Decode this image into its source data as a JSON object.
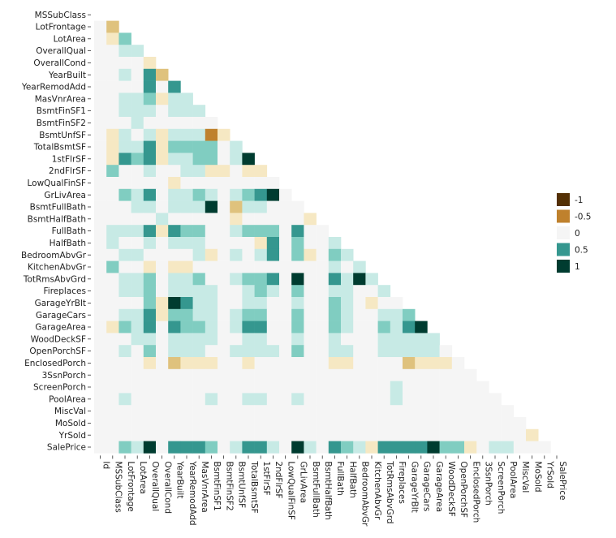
{
  "chart_data": {
    "type": "heatmap",
    "subtype": "lower-triangle correlation matrix",
    "variables": [
      "Id",
      "MSSubClass",
      "LotFrontage",
      "LotArea",
      "OverallQual",
      "OverallCond",
      "YearBuilt",
      "YearRemodAdd",
      "MasVnrArea",
      "BsmtFinSF1",
      "BsmtFinSF2",
      "BsmtUnfSF",
      "TotalBsmtSF",
      "1stFlrSF",
      "2ndFlrSF",
      "LowQualFinSF",
      "GrLivArea",
      "BsmtFullBath",
      "BsmtHalfBath",
      "FullBath",
      "HalfBath",
      "BedroomAbvGr",
      "KitchenAbvGr",
      "TotRmsAbvGrd",
      "Fireplaces",
      "GarageYrBlt",
      "GarageCars",
      "GarageArea",
      "WoodDeckSF",
      "OpenPorchSF",
      "EnclosedPorch",
      "3SsnPorch",
      "ScreenPorch",
      "PoolArea",
      "MiscVal",
      "MoSold",
      "YrSold",
      "SalePrice"
    ],
    "value_range": [
      -1,
      1
    ],
    "legend": {
      "placement": "right",
      "entries": [
        {
          "label": "-1",
          "value": -1,
          "color": "#543005"
        },
        {
          "label": "-0.5",
          "value": -0.5,
          "color": "#bf812d"
        },
        {
          "label": "0",
          "value": 0,
          "color": "#f5f5f5"
        },
        {
          "label": "0.5",
          "value": 0.5,
          "color": "#35978f"
        },
        {
          "label": "1",
          "value": 1,
          "color": "#003c30"
        }
      ]
    },
    "colors": {
      "-0.9": "#543005",
      "-0.7": "#bf812d",
      "-0.5": "#dfc27d",
      "-0.3": "#f6e8c3",
      "0": "#f5f5f5",
      "0.3": "#c7eae5",
      "0.5": "#80cdc1",
      "0.7": "#35978f",
      "0.9": "#003c30"
    },
    "rows": [
      {
        "name": "MSSubClass",
        "values": []
      },
      {
        "name": "LotFrontage",
        "values": [
          0,
          -0.5
        ]
      },
      {
        "name": "LotArea",
        "values": [
          0,
          -0.3,
          0.5
        ]
      },
      {
        "name": "OverallQual",
        "values": [
          0,
          0,
          0.3,
          0.3
        ]
      },
      {
        "name": "OverallCond",
        "values": [
          0,
          0,
          0,
          0,
          -0.3
        ]
      },
      {
        "name": "YearBuilt",
        "values": [
          0,
          0,
          0.3,
          0,
          0.7,
          -0.5
        ]
      },
      {
        "name": "YearRemodAdd",
        "values": [
          0,
          0,
          0,
          0,
          0.7,
          0,
          0.7
        ]
      },
      {
        "name": "MasVnrArea",
        "values": [
          0,
          0,
          0.3,
          0.3,
          0.5,
          -0.3,
          0.3,
          0.3
        ]
      },
      {
        "name": "BsmtFinSF1",
        "values": [
          0,
          0,
          0.3,
          0.3,
          0.3,
          0,
          0.3,
          0.3,
          0.3
        ]
      },
      {
        "name": "BsmtFinSF2",
        "values": [
          0,
          0,
          0,
          0.3,
          0,
          0,
          0,
          0,
          0,
          0
        ]
      },
      {
        "name": "BsmtUnfSF",
        "values": [
          0,
          -0.3,
          0.3,
          0,
          0.3,
          -0.3,
          0.3,
          0.3,
          0.3,
          -0.7,
          -0.3
        ]
      },
      {
        "name": "TotalBsmtSF",
        "values": [
          0,
          -0.3,
          0.3,
          0.3,
          0.7,
          -0.3,
          0.5,
          0.5,
          0.5,
          0.5,
          0,
          0.3
        ]
      },
      {
        "name": "1stFlrSF",
        "values": [
          0,
          -0.3,
          0.7,
          0.5,
          0.7,
          -0.3,
          0.3,
          0.3,
          0.5,
          0.5,
          0,
          0.3,
          0.9
        ]
      },
      {
        "name": "2ndFlrSF",
        "values": [
          0,
          0.5,
          0,
          0,
          0.3,
          0,
          0,
          0.3,
          0.3,
          -0.3,
          -0.3,
          0,
          -0.3,
          -0.3
        ]
      },
      {
        "name": "LowQualFinSF",
        "values": [
          0,
          0,
          0,
          0,
          0,
          0,
          -0.3,
          0,
          0,
          0,
          0,
          0,
          0,
          0,
          0
        ]
      },
      {
        "name": "GrLivArea",
        "values": [
          0,
          0,
          0.5,
          0.3,
          0.7,
          0,
          0.3,
          0.3,
          0.5,
          0.3,
          0,
          0.3,
          0.5,
          0.7,
          0.9,
          0
        ]
      },
      {
        "name": "BsmtFullBath",
        "values": [
          0,
          0,
          0,
          0.3,
          0.3,
          0,
          0.3,
          0.3,
          0.3,
          0.9,
          0,
          -0.5,
          0.3,
          0.3,
          0,
          0,
          0
        ]
      },
      {
        "name": "BsmtHalfBath",
        "values": [
          0,
          0,
          0,
          0,
          0,
          0.3,
          0,
          0,
          0,
          0,
          0,
          -0.3,
          0,
          0,
          0,
          0,
          0,
          -0.3
        ]
      },
      {
        "name": "FullBath",
        "values": [
          0,
          0.3,
          0.3,
          0.3,
          0.7,
          -0.3,
          0.7,
          0.5,
          0.5,
          0,
          0,
          0.3,
          0.5,
          0.5,
          0.5,
          0,
          0.7,
          0,
          0
        ]
      },
      {
        "name": "HalfBath",
        "values": [
          0,
          0.3,
          0,
          0,
          0.3,
          0,
          0.3,
          0.3,
          0.3,
          0,
          0,
          0,
          0,
          -0.3,
          0.7,
          0,
          0.5,
          0,
          0,
          0.3
        ]
      },
      {
        "name": "BedroomAbvGr",
        "values": [
          0,
          0,
          0.3,
          0.3,
          0,
          0,
          0,
          0,
          0.3,
          -0.3,
          0,
          0.3,
          0,
          0.3,
          0.7,
          0,
          0.5,
          -0.3,
          0,
          0.5,
          0.3
        ]
      },
      {
        "name": "KitchenAbvGr",
        "values": [
          0,
          0.5,
          0,
          0,
          -0.3,
          0,
          -0.3,
          -0.3,
          0,
          0,
          0,
          0,
          0,
          0,
          0,
          0,
          0,
          0,
          0,
          0.3,
          0,
          0.3
        ]
      },
      {
        "name": "TotRmsAbvGrd",
        "values": [
          0,
          0,
          0.3,
          0.3,
          0.5,
          0,
          0.3,
          0.3,
          0.5,
          0,
          0,
          0.3,
          0.5,
          0.5,
          0.7,
          0,
          0.9,
          0,
          0,
          0.7,
          0.3,
          0.9,
          0.3
        ]
      },
      {
        "name": "Fireplaces",
        "values": [
          0,
          0,
          0.3,
          0.3,
          0.5,
          0,
          0.3,
          0.3,
          0.3,
          0.3,
          0,
          0,
          0.3,
          0.5,
          0.3,
          0,
          0.5,
          0,
          0,
          0.3,
          0.3,
          0,
          0,
          0.3
        ]
      },
      {
        "name": "GarageYrBlt",
        "values": [
          0,
          0,
          0,
          0,
          0.5,
          -0.3,
          0.9,
          0.7,
          0.3,
          0.3,
          0,
          0,
          0.3,
          0.3,
          0,
          0,
          0.3,
          0,
          0,
          0.5,
          0.3,
          0,
          -0.3,
          0,
          0
        ]
      },
      {
        "name": "GarageCars",
        "values": [
          0,
          0,
          0.3,
          0.3,
          0.7,
          -0.3,
          0.5,
          0.5,
          0.3,
          0.3,
          0,
          0.3,
          0.5,
          0.5,
          0,
          0,
          0.5,
          0,
          0,
          0.5,
          0.3,
          0,
          0,
          0.3,
          0.3,
          0.5
        ]
      },
      {
        "name": "GarageArea",
        "values": [
          0,
          -0.3,
          0.5,
          0.3,
          0.7,
          0,
          0.7,
          0.5,
          0.5,
          0.3,
          0,
          0.3,
          0.7,
          0.7,
          0,
          0,
          0.5,
          0,
          0,
          0.5,
          0.3,
          0,
          0,
          0.5,
          0.3,
          0.7,
          0.9
        ]
      },
      {
        "name": "WoodDeckSF",
        "values": [
          0,
          0,
          0,
          0.3,
          0.3,
          0,
          0.3,
          0.3,
          0.3,
          0.3,
          0,
          0,
          0.3,
          0.3,
          0,
          0,
          0.3,
          0,
          0,
          0.3,
          0,
          0,
          0,
          0.3,
          0.3,
          0.3,
          0.3,
          0.3
        ]
      },
      {
        "name": "OpenPorchSF",
        "values": [
          0,
          0,
          0.3,
          0,
          0.5,
          0,
          0.3,
          0.3,
          0.3,
          0,
          0,
          0.3,
          0.3,
          0.3,
          0.3,
          0,
          0.5,
          0,
          0,
          0.3,
          0.3,
          0,
          0,
          0.3,
          0.3,
          0.3,
          0.3,
          0.3,
          0
        ]
      },
      {
        "name": "EnclosedPorch",
        "values": [
          0,
          0,
          0,
          0,
          -0.3,
          0,
          -0.5,
          -0.3,
          -0.3,
          -0.3,
          0,
          0,
          -0.3,
          0,
          0,
          0,
          0,
          0,
          0,
          -0.3,
          -0.3,
          0,
          0,
          0,
          0,
          -0.5,
          -0.3,
          -0.3,
          -0.3,
          0
        ]
      },
      {
        "name": "3SsnPorch",
        "values": [
          0,
          0,
          0,
          0,
          0,
          0,
          0,
          0,
          0,
          0,
          0,
          0,
          0,
          0,
          0,
          0,
          0,
          0,
          0,
          0,
          0,
          0,
          0,
          0,
          0,
          0,
          0,
          0,
          0,
          0,
          0
        ]
      },
      {
        "name": "ScreenPorch",
        "values": [
          0,
          0,
          0,
          0,
          0,
          0,
          0,
          0,
          0,
          0,
          0,
          0,
          0,
          0,
          0,
          0,
          0,
          0,
          0,
          0,
          0,
          0,
          0,
          0,
          0.3,
          0,
          0,
          0,
          0,
          0,
          0,
          0
        ]
      },
      {
        "name": "PoolArea",
        "values": [
          0,
          0,
          0.3,
          0,
          0,
          0,
          0,
          0,
          0,
          0.3,
          0,
          0,
          0.3,
          0.3,
          0,
          0,
          0.3,
          0,
          0,
          0,
          0,
          0,
          0,
          0,
          0.3,
          0,
          0,
          0,
          0,
          0,
          0,
          0,
          0
        ]
      },
      {
        "name": "MiscVal",
        "values": [
          0,
          0,
          0,
          0,
          0,
          0,
          0,
          0,
          0,
          0,
          0,
          0,
          0,
          0,
          0,
          0,
          0,
          0,
          0,
          0,
          0,
          0,
          0,
          0,
          0,
          0,
          0,
          0,
          0,
          0,
          0,
          0,
          0,
          0
        ]
      },
      {
        "name": "MoSold",
        "values": [
          0,
          0,
          0,
          0,
          0,
          0,
          0,
          0,
          0,
          0,
          0,
          0,
          0,
          0,
          0,
          0,
          0,
          0,
          0,
          0,
          0,
          0,
          0,
          0,
          0,
          0,
          0,
          0,
          0,
          0,
          0,
          0,
          0,
          0,
          0
        ]
      },
      {
        "name": "YrSold",
        "values": [
          0,
          0,
          0,
          0,
          0,
          0,
          0,
          0,
          0,
          0,
          0,
          0,
          0,
          0,
          0,
          0,
          0,
          0,
          0,
          0,
          0,
          0,
          0,
          0,
          0,
          0,
          0,
          0,
          0,
          0,
          0,
          0,
          0,
          0,
          0,
          -0.3
        ]
      },
      {
        "name": "SalePrice",
        "values": [
          0,
          0,
          0.5,
          0.3,
          0.9,
          0,
          0.7,
          0.7,
          0.7,
          0.5,
          0,
          0.3,
          0.7,
          0.7,
          0.3,
          0,
          0.9,
          0.3,
          0,
          0.7,
          0.5,
          0.3,
          -0.3,
          0.7,
          0.7,
          0.7,
          0.7,
          0.9,
          0.5,
          0.5,
          -0.3,
          0,
          0.3,
          0.3,
          0,
          0,
          0
        ]
      }
    ]
  }
}
